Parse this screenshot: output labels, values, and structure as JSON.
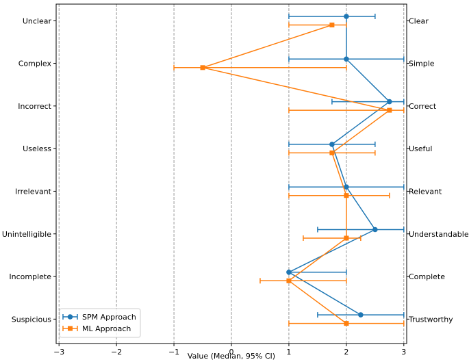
{
  "chart_data": {
    "type": "scatter",
    "title": "",
    "xlabel": "Value (Median, 95% CI)",
    "ylabel": "",
    "xlim": [
      -3.05,
      3.05
    ],
    "xticks": [
      -3,
      -2,
      -1,
      0,
      1,
      2,
      3
    ],
    "xtick_labels": [
      "−3",
      "−2",
      "−1",
      "0",
      "1",
      "2",
      "3"
    ],
    "grid": "vertical dashed",
    "categories_left": [
      "Unclear",
      "Complex",
      "Incorrect",
      "Useless",
      "Irrelevant",
      "Unintelligible",
      "Incomplete",
      "Suspicious"
    ],
    "categories_right": [
      "Clear",
      "Simple",
      "Correct",
      "Useful",
      "Relevant",
      "Understandable",
      "Complete",
      "Trustworthy"
    ],
    "series": [
      {
        "name": "SPM Approach",
        "color": "#1f77b4",
        "marker": "circle",
        "values": [
          2.0,
          2.0,
          2.75,
          1.75,
          2.0,
          2.5,
          1.0,
          2.25
        ],
        "ci_low": [
          1.0,
          1.0,
          1.75,
          1.0,
          1.0,
          1.5,
          1.0,
          1.5
        ],
        "ci_high": [
          2.5,
          3.0,
          3.0,
          2.5,
          3.0,
          3.0,
          2.0,
          3.0
        ]
      },
      {
        "name": "ML Approach",
        "color": "#ff7f0e",
        "marker": "square",
        "values": [
          1.75,
          -0.5,
          2.75,
          1.75,
          2.0,
          2.0,
          1.0,
          2.0
        ],
        "ci_low": [
          1.0,
          -1.0,
          1.0,
          1.0,
          1.0,
          1.25,
          0.5,
          1.0
        ],
        "ci_high": [
          2.0,
          2.0,
          3.0,
          2.5,
          2.75,
          2.25,
          2.0,
          3.0
        ]
      }
    ],
    "legend_position": "lower-left"
  }
}
